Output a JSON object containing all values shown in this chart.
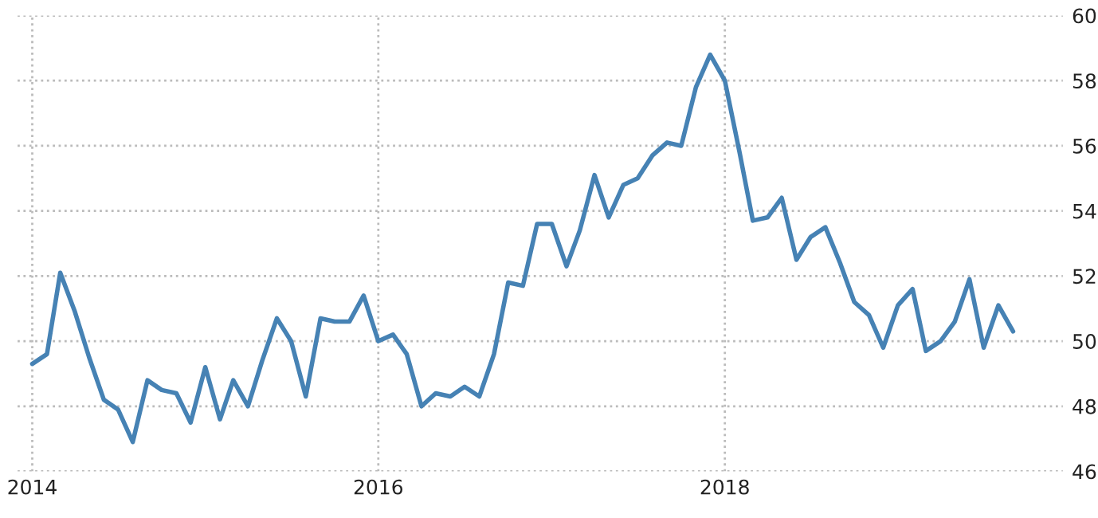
{
  "chart_data": {
    "type": "line",
    "x": [
      "2014-01",
      "2014-02",
      "2014-03",
      "2014-04",
      "2014-05",
      "2014-06",
      "2014-07",
      "2014-08",
      "2014-09",
      "2014-10",
      "2014-11",
      "2014-12",
      "2015-01",
      "2015-02",
      "2015-03",
      "2015-04",
      "2015-05",
      "2015-06",
      "2015-07",
      "2015-08",
      "2015-09",
      "2015-10",
      "2015-11",
      "2015-12",
      "2016-01",
      "2016-02",
      "2016-03",
      "2016-04",
      "2016-05",
      "2016-06",
      "2016-07",
      "2016-08",
      "2016-09",
      "2016-10",
      "2016-11",
      "2016-12",
      "2017-01",
      "2017-02",
      "2017-03",
      "2017-04",
      "2017-05",
      "2017-06",
      "2017-07",
      "2017-08",
      "2017-09",
      "2017-10",
      "2017-11",
      "2017-12",
      "2018-01",
      "2018-02",
      "2018-03",
      "2018-04",
      "2018-05",
      "2018-06",
      "2018-07",
      "2018-08",
      "2018-09",
      "2018-10",
      "2018-11",
      "2018-12",
      "2019-01",
      "2019-02",
      "2019-03",
      "2019-04",
      "2019-05",
      "2019-06",
      "2019-07",
      "2019-08",
      "2019-09"
    ],
    "series": [
      {
        "color": "#4682b4",
        "values": [
          49.3,
          49.6,
          52.1,
          50.9,
          49.5,
          48.2,
          47.9,
          46.9,
          48.8,
          48.5,
          48.4,
          47.5,
          49.2,
          47.6,
          48.8,
          48.0,
          49.4,
          50.7,
          50.0,
          48.3,
          50.7,
          50.6,
          50.6,
          51.4,
          50.0,
          50.2,
          49.6,
          48.0,
          48.4,
          48.3,
          48.6,
          48.3,
          49.6,
          51.8,
          51.7,
          53.6,
          53.6,
          52.3,
          53.4,
          55.1,
          53.8,
          54.8,
          55.0,
          55.7,
          56.1,
          56.0,
          57.8,
          58.8,
          58.0,
          55.8,
          53.7,
          53.8,
          54.4,
          52.5,
          53.2,
          53.5,
          52.4,
          51.2,
          50.8,
          49.8,
          51.1,
          51.6,
          49.7,
          50.0,
          50.6,
          51.9,
          49.8,
          51.1,
          50.3
        ]
      }
    ],
    "xlim": [
      "2013-12-01",
      "2019-12-15"
    ],
    "xticks": [
      "2014",
      "2016",
      "2018"
    ],
    "ylim": [
      46,
      60
    ],
    "yticks": [
      46,
      48,
      50,
      52,
      54,
      56,
      58,
      60
    ],
    "grid": true,
    "marker": "none",
    "line_style": "solid"
  }
}
